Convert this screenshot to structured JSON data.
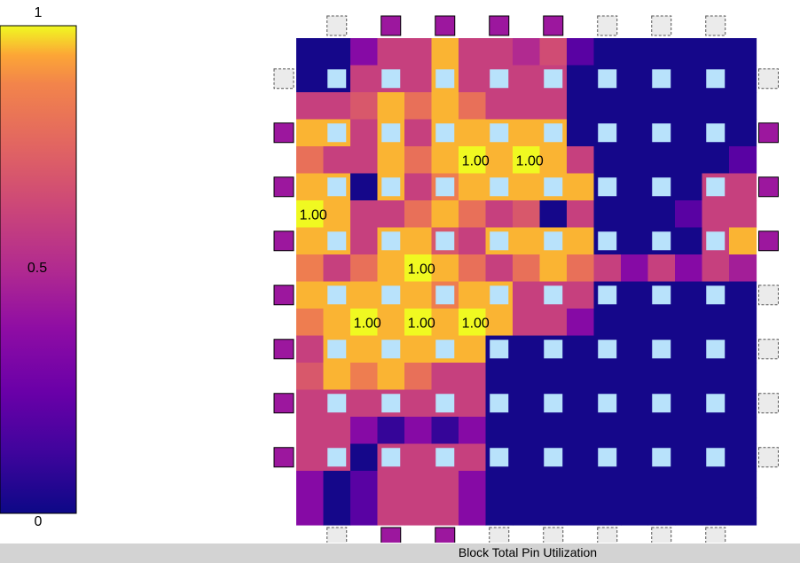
{
  "chart_data": {
    "type": "heatmap",
    "title": "",
    "status_text": "Block Total Pin Utilization",
    "colorbar": {
      "colormap": "plasma",
      "min_label": "0",
      "mid_label": "0.5",
      "max_label": "1",
      "min": 0,
      "max": 1
    },
    "colors": {
      "background": "#ffffff",
      "io_pin_used": "#9c179e",
      "io_pin_unused": "#ebebeb",
      "clb_site": "#b8e2fb",
      "status_bar": "#d3d3d3"
    },
    "grid": {
      "rows": 18,
      "cols": 17,
      "values": [
        [
          0.02,
          0.02,
          0.35,
          0.6,
          0.6,
          0.95,
          0.6,
          0.6,
          0.5,
          0.65,
          0.2,
          0.02,
          0.02,
          0.02,
          0.02,
          0.02,
          0.02
        ],
        [
          0.02,
          0.02,
          0.6,
          0.6,
          0.6,
          0.95,
          0.6,
          0.6,
          0.6,
          0.6,
          0.02,
          0.02,
          0.02,
          0.02,
          0.02,
          0.02,
          0.02
        ],
        [
          0.6,
          0.6,
          0.7,
          0.95,
          0.8,
          0.95,
          0.8,
          0.6,
          0.6,
          0.6,
          0.02,
          0.02,
          0.02,
          0.02,
          0.02,
          0.02,
          0.02
        ],
        [
          0.95,
          0.95,
          0.6,
          0.95,
          0.6,
          0.95,
          0.95,
          0.95,
          0.95,
          0.95,
          0.02,
          0.02,
          0.02,
          0.02,
          0.02,
          0.02,
          0.02
        ],
        [
          0.8,
          0.6,
          0.6,
          0.95,
          0.8,
          0.95,
          1.0,
          0.95,
          1.0,
          0.95,
          0.6,
          0.02,
          0.02,
          0.02,
          0.02,
          0.02,
          0.2
        ],
        [
          0.95,
          0.95,
          0.02,
          0.95,
          0.6,
          0.85,
          0.95,
          0.95,
          0.95,
          0.95,
          0.95,
          0.02,
          0.02,
          0.02,
          0.02,
          0.6,
          0.6
        ],
        [
          1.0,
          0.95,
          0.6,
          0.6,
          0.8,
          0.95,
          0.8,
          0.6,
          0.7,
          0.02,
          0.6,
          0.02,
          0.02,
          0.02,
          0.2,
          0.6,
          0.6
        ],
        [
          0.95,
          0.95,
          0.6,
          0.95,
          0.95,
          0.7,
          0.6,
          0.95,
          0.95,
          0.95,
          0.95,
          0.02,
          0.02,
          0.02,
          0.02,
          0.6,
          0.95
        ],
        [
          0.85,
          0.6,
          0.8,
          0.95,
          1.0,
          0.95,
          0.8,
          0.6,
          0.8,
          0.95,
          0.8,
          0.6,
          0.35,
          0.6,
          0.35,
          0.6,
          0.45
        ],
        [
          0.95,
          0.95,
          0.95,
          0.95,
          0.95,
          0.85,
          0.95,
          0.95,
          0.6,
          0.6,
          0.6,
          0.02,
          0.02,
          0.02,
          0.02,
          0.02,
          0.02
        ],
        [
          0.85,
          0.95,
          1.0,
          0.95,
          1.0,
          0.95,
          1.0,
          0.95,
          0.6,
          0.6,
          0.35,
          0.02,
          0.02,
          0.02,
          0.02,
          0.02,
          0.02
        ],
        [
          0.6,
          0.95,
          0.95,
          0.95,
          0.95,
          0.95,
          0.95,
          0.02,
          0.02,
          0.02,
          0.02,
          0.02,
          0.02,
          0.02,
          0.02,
          0.02,
          0.02
        ],
        [
          0.7,
          0.95,
          0.85,
          0.95,
          0.8,
          0.6,
          0.6,
          0.02,
          0.02,
          0.02,
          0.02,
          0.02,
          0.02,
          0.02,
          0.02,
          0.02,
          0.02
        ],
        [
          0.6,
          0.6,
          0.6,
          0.6,
          0.6,
          0.6,
          0.6,
          0.02,
          0.02,
          0.02,
          0.02,
          0.02,
          0.02,
          0.02,
          0.02,
          0.02,
          0.02
        ],
        [
          0.6,
          0.6,
          0.35,
          0.1,
          0.35,
          0.1,
          0.35,
          0.02,
          0.02,
          0.02,
          0.02,
          0.02,
          0.02,
          0.02,
          0.02,
          0.02,
          0.02
        ],
        [
          0.6,
          0.6,
          0.02,
          0.6,
          0.6,
          0.6,
          0.6,
          0.02,
          0.02,
          0.02,
          0.02,
          0.02,
          0.02,
          0.02,
          0.02,
          0.02,
          0.02
        ],
        [
          0.35,
          0.02,
          0.2,
          0.6,
          0.6,
          0.6,
          0.35,
          0.02,
          0.02,
          0.02,
          0.02,
          0.02,
          0.02,
          0.02,
          0.02,
          0.02,
          0.02
        ],
        [
          0.35,
          0.02,
          0.2,
          0.6,
          0.6,
          0.6,
          0.35,
          0.02,
          0.02,
          0.02,
          0.02,
          0.02,
          0.02,
          0.02,
          0.02,
          0.02,
          0.02
        ]
      ],
      "annotations": [
        {
          "row": 4,
          "col": 6,
          "text": "1.00"
        },
        {
          "row": 4,
          "col": 8,
          "text": "1.00"
        },
        {
          "row": 6,
          "col": 0,
          "text": "1.00"
        },
        {
          "row": 8,
          "col": 4,
          "text": "1.00"
        },
        {
          "row": 10,
          "col": 2,
          "text": "1.00"
        },
        {
          "row": 10,
          "col": 4,
          "text": "1.00"
        },
        {
          "row": 10,
          "col": 6,
          "text": "1.00"
        }
      ],
      "clb_sites": [
        [
          1,
          1
        ],
        [
          1,
          3
        ],
        [
          1,
          5
        ],
        [
          1,
          7
        ],
        [
          1,
          9
        ],
        [
          1,
          11
        ],
        [
          1,
          13
        ],
        [
          1,
          15
        ],
        [
          3,
          1
        ],
        [
          3,
          3
        ],
        [
          3,
          5
        ],
        [
          3,
          7
        ],
        [
          3,
          9
        ],
        [
          3,
          11
        ],
        [
          3,
          13
        ],
        [
          3,
          15
        ],
        [
          5,
          1
        ],
        [
          5,
          3
        ],
        [
          5,
          5
        ],
        [
          5,
          7
        ],
        [
          5,
          9
        ],
        [
          5,
          11
        ],
        [
          5,
          13
        ],
        [
          5,
          15
        ],
        [
          7,
          1
        ],
        [
          7,
          3
        ],
        [
          7,
          5
        ],
        [
          7,
          7
        ],
        [
          7,
          9
        ],
        [
          7,
          11
        ],
        [
          7,
          13
        ],
        [
          7,
          15
        ],
        [
          9,
          1
        ],
        [
          9,
          3
        ],
        [
          9,
          5
        ],
        [
          9,
          7
        ],
        [
          9,
          9
        ],
        [
          9,
          11
        ],
        [
          9,
          13
        ],
        [
          9,
          15
        ],
        [
          11,
          1
        ],
        [
          11,
          3
        ],
        [
          11,
          5
        ],
        [
          11,
          7
        ],
        [
          11,
          9
        ],
        [
          11,
          11
        ],
        [
          11,
          13
        ],
        [
          11,
          15
        ],
        [
          13,
          1
        ],
        [
          13,
          3
        ],
        [
          13,
          5
        ],
        [
          13,
          7
        ],
        [
          13,
          9
        ],
        [
          13,
          11
        ],
        [
          13,
          13
        ],
        [
          13,
          15
        ],
        [
          15,
          1
        ],
        [
          15,
          3
        ],
        [
          15,
          5
        ],
        [
          15,
          7
        ],
        [
          15,
          9
        ],
        [
          15,
          11
        ],
        [
          15,
          13
        ],
        [
          15,
          15
        ]
      ]
    },
    "io_pins": {
      "top": [
        false,
        true,
        true,
        true,
        true,
        false,
        false,
        false
      ],
      "bottom": [
        false,
        true,
        true,
        false,
        false,
        false,
        false,
        false
      ],
      "left": [
        false,
        true,
        true,
        true,
        true,
        true,
        true,
        true
      ],
      "right": [
        false,
        true,
        true,
        true,
        false,
        false,
        false,
        false
      ]
    }
  }
}
